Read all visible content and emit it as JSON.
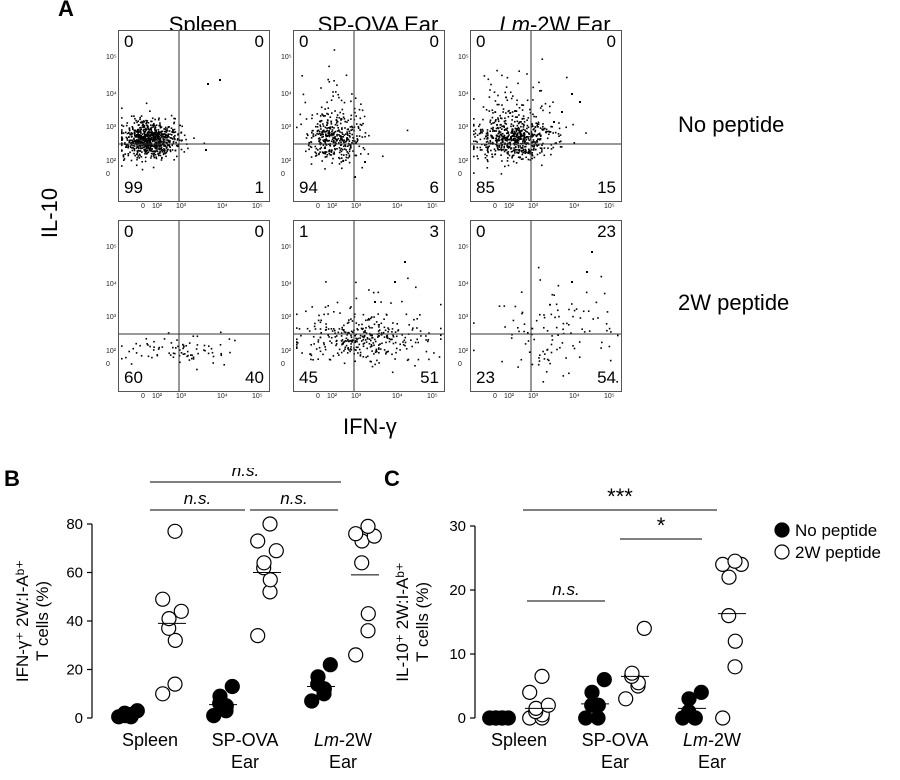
{
  "panel_a": {
    "letter": "A",
    "col_titles": [
      {
        "pre": "",
        "italic": "",
        "text": "Spleen"
      },
      {
        "pre": "",
        "italic": "",
        "text": "SP-OVA Ear"
      },
      {
        "pre": "",
        "italic": "Lm",
        "text": "-2W Ear"
      }
    ],
    "row_labels": [
      "No peptide",
      "2W peptide"
    ],
    "y_axis_label": "IL-10",
    "x_axis_label": "IFN-γ",
    "tick_labels": {
      "y": [
        "10⁵",
        "10⁴",
        "10³",
        "10²",
        "0"
      ],
      "x": [
        "0",
        "10²",
        "10³",
        "10⁴",
        "10⁵"
      ]
    },
    "plots": [
      {
        "row": 0,
        "col": 0,
        "quadrants": {
          "ul": "0",
          "ur": "0",
          "ll": "99",
          "lr": "1"
        }
      },
      {
        "row": 0,
        "col": 1,
        "quadrants": {
          "ul": "0",
          "ur": "0",
          "ll": "94",
          "lr": "6"
        }
      },
      {
        "row": 0,
        "col": 2,
        "quadrants": {
          "ul": "0",
          "ur": "0",
          "ll": "85",
          "lr": "15"
        }
      },
      {
        "row": 1,
        "col": 0,
        "quadrants": {
          "ul": "0",
          "ur": "0",
          "ll": "60",
          "lr": "40"
        }
      },
      {
        "row": 1,
        "col": 1,
        "quadrants": {
          "ul": "1",
          "ur": "3",
          "ll": "45",
          "lr": "51"
        }
      },
      {
        "row": 1,
        "col": 2,
        "quadrants": {
          "ul": "0",
          "ur": "23",
          "ll": "23",
          "lr": "54"
        }
      }
    ]
  },
  "chart_data": [
    {
      "panel": "B",
      "type": "scatter",
      "ylabel_line1": "IFN-γ⁺ 2W:I-Aᵇ⁺",
      "ylabel_line2": "T cells (%)",
      "ylim": [
        0,
        80
      ],
      "yticks": [
        "0",
        "20",
        "40",
        "60",
        "80"
      ],
      "categories": [
        {
          "line1_pre": "",
          "line1_italic": "",
          "line1": "Spleen",
          "line2": ""
        },
        {
          "line1_pre": "",
          "line1_italic": "",
          "line1": "SP-OVA",
          "line2": "Ear"
        },
        {
          "line1_pre": "",
          "line1_italic": "Lm",
          "line1": "-2W",
          "line2": "Ear"
        }
      ],
      "series": [
        {
          "name": "No peptide",
          "filled": true,
          "values": [
            [
              0.5,
              0.5,
              1.5,
              2,
              1,
              3
            ],
            [
              1,
              3,
              5,
              6,
              9,
              13
            ],
            [
              7,
              10,
              12,
              14,
              17,
              22
            ]
          ],
          "means": [
            1.5,
            5.5,
            13
          ]
        },
        {
          "name": "2W peptide",
          "filled": false,
          "values": [
            [
              10,
              14,
              32,
              37,
              41,
              44,
              49,
              77
            ],
            [
              34,
              52,
              57,
              62,
              64,
              69,
              73,
              80
            ],
            [
              26,
              36,
              43,
              64,
              73,
              75,
              76,
              79
            ]
          ],
          "means": [
            39,
            60,
            59
          ]
        }
      ],
      "significance": [
        {
          "label": "n.s.",
          "from": 0,
          "to": 1
        },
        {
          "label": "n.s.",
          "from": 1,
          "to": 2
        },
        {
          "label": "n.s.",
          "from": 0,
          "to": 2
        }
      ]
    },
    {
      "panel": "C",
      "type": "scatter",
      "ylabel_line1": "IL-10⁺ 2W:I-Aᵇ⁺",
      "ylabel_line2": "T cells (%)",
      "ylim": [
        0,
        30
      ],
      "yticks": [
        "0",
        "10",
        "20",
        "30"
      ],
      "categories": [
        {
          "line1_pre": "",
          "line1_italic": "",
          "line1": "Spleen",
          "line2": ""
        },
        {
          "line1_pre": "",
          "line1_italic": "",
          "line1": "SP-OVA",
          "line2": "Ear"
        },
        {
          "line1_pre": "",
          "line1_italic": "Lm",
          "line1": "-2W",
          "line2": "Ear"
        }
      ],
      "series": [
        {
          "name": "No peptide",
          "filled": true,
          "values": [
            [
              0,
              0,
              0,
              0,
              0,
              0
            ],
            [
              0,
              0,
              2,
              2,
              4,
              6
            ],
            [
              0,
              0,
              0,
              1,
              3,
              4
            ]
          ],
          "means": [
            0.1,
            2.2,
            1.5
          ]
        },
        {
          "name": "2W peptide",
          "filled": false,
          "values": [
            [
              0,
              0,
              0.5,
              1,
              1.5,
              2,
              4,
              6.5
            ],
            [
              3,
              5,
              5.5,
              6.5,
              7,
              14
            ],
            [
              0,
              8,
              12,
              16,
              22,
              24,
              24,
              24.5
            ]
          ],
          "means": [
            1.5,
            6.5,
            16.3
          ]
        }
      ],
      "significance": [
        {
          "label": "n.s.",
          "from": 0,
          "to": 1
        },
        {
          "label": "*",
          "from": 1,
          "to": 2
        },
        {
          "label": "***",
          "from": 0,
          "to": 2
        }
      ],
      "legend": {
        "placement": "right",
        "entries": [
          "No peptide",
          "2W peptide"
        ]
      }
    }
  ]
}
